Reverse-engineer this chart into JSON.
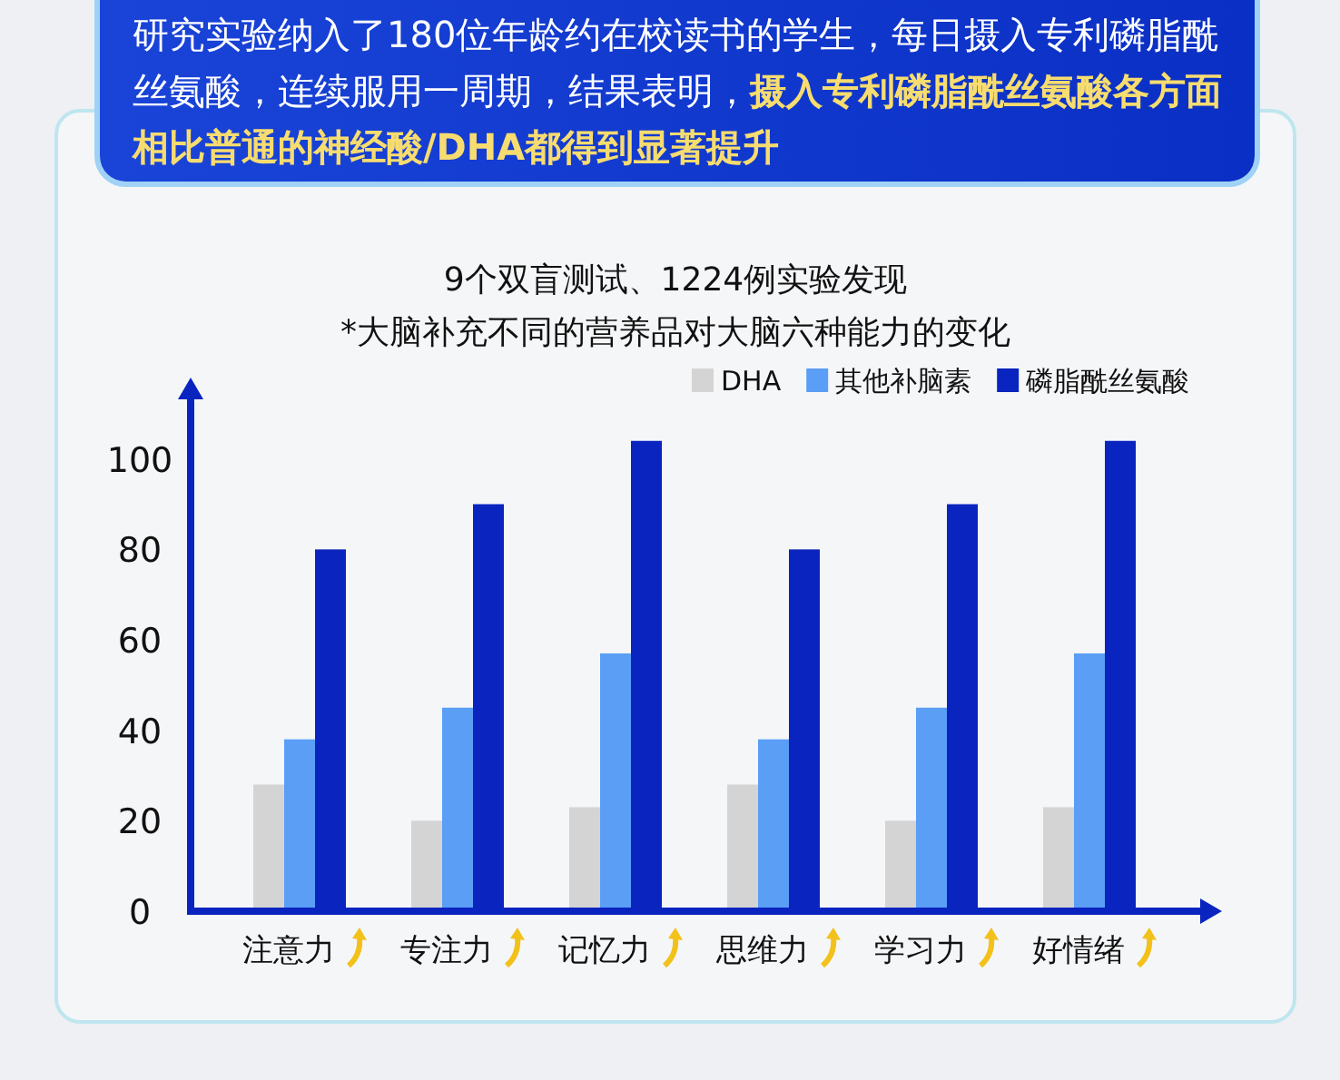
{
  "chart_data": {
    "type": "bar",
    "title": "9个双盲测试、1224例实验发现",
    "subtitle": "*大脑补充不同的营养品对大脑六种能力的变化",
    "annotations": [
      "研究实验纳入了180位年龄约在校读书的学生，每日摄入专利磷脂酰丝氨酸，连续服用一周期，结果表明，**摄入专利磷脂酰丝氨酸各方面相比普通的神经酸/DHA都得到显著提升**"
    ],
    "categories": [
      "注意力",
      "专注力",
      "记忆力",
      "思维力",
      "学习力",
      "好情绪"
    ],
    "series": [
      {
        "name": "DHA",
        "color": "#d4d4d4",
        "values": [
          28,
          20,
          23,
          28,
          20,
          23
        ]
      },
      {
        "name": "其他补脑素",
        "color": "#5a9ef6",
        "values": [
          38,
          45,
          57,
          38,
          45,
          57
        ]
      },
      {
        "name": "磷脂酰丝氨酸",
        "color": "#0a24bf",
        "values": [
          80,
          90,
          104,
          80,
          90,
          104
        ]
      }
    ],
    "ylim": [
      0,
      118
    ],
    "yticks": [
      0,
      20,
      40,
      60,
      80,
      100
    ],
    "grid": false,
    "legend": "top right"
  }
}
